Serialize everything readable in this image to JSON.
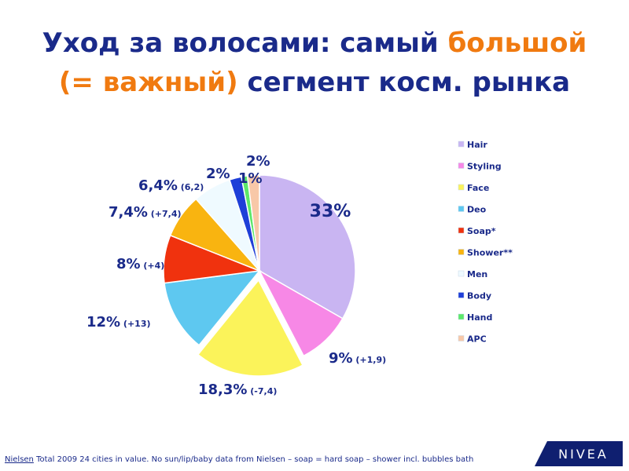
{
  "title": {
    "part1": "Уход за волосами: самый ",
    "part2": "большой",
    "part3": "(= важный)",
    "part4": " сегмент косм. рынка"
  },
  "colors": {
    "title": "#1a2a8a",
    "highlight": "#f07a10",
    "big_label": "#e8301a",
    "logo_bg": "#0f1f70"
  },
  "chart_data": {
    "type": "pie",
    "series": [
      {
        "name": "Hair",
        "value": 33,
        "label": "33%",
        "delta": "",
        "color": "#c9b5f2"
      },
      {
        "name": "Styling",
        "value": 9,
        "label": "9%",
        "delta": "(+1,9)",
        "color": "#f788e6"
      },
      {
        "name": "Face",
        "value": 18.3,
        "label": "18,3%",
        "delta": "(-7,4)",
        "color": "#fbf35a"
      },
      {
        "name": "Deo",
        "value": 12,
        "label": "12%",
        "delta": "(+13)",
        "color": "#5ec8f0"
      },
      {
        "name": "Soap*",
        "value": 8,
        "label": "8%",
        "delta": "(+4)",
        "color": "#f0320e"
      },
      {
        "name": "Shower**",
        "value": 7.4,
        "label": "7,4%",
        "delta": "(+7,4)",
        "color": "#f9b410"
      },
      {
        "name": "Men",
        "value": 6.4,
        "label": "6,4%",
        "delta": "(6,2)",
        "color": "#effaff"
      },
      {
        "name": "Body",
        "value": 2,
        "label": "2%",
        "delta": "",
        "color": "#1f3fd8"
      },
      {
        "name": "Hand",
        "value": 1,
        "label": "1%",
        "delta": "",
        "color": "#5ce86a"
      },
      {
        "name": "APC",
        "value": 2,
        "label": "2%",
        "delta": "",
        "color": "#f8c8a8"
      }
    ],
    "legend_position": "right"
  },
  "footnote": {
    "source": "Nielsen",
    "text": " Total 2009 24 cities in value. No sun/lip/baby data from Nielsen – soap = hard soap – shower incl. bubbles bath"
  },
  "logo": {
    "text": "NIVEA"
  }
}
